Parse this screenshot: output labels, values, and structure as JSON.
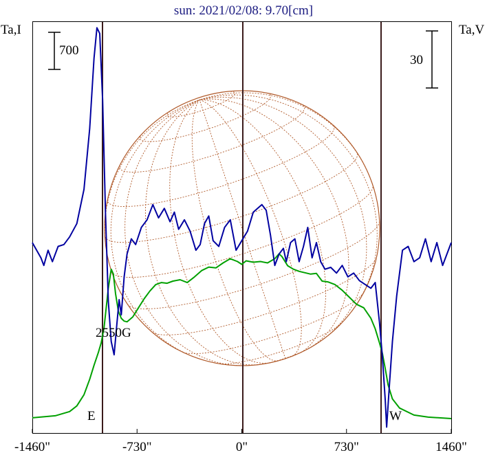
{
  "chart_data": {
    "type": "line",
    "title": "sun: 2021/02/08: 9.70[cm]",
    "ylabel_left": "Ta,I",
    "ylabel_right": "Ta,V",
    "scale_left": "700",
    "scale_right": "30",
    "x_ticks": [
      "-1460\"",
      "-730\"",
      "0\"",
      "730\"",
      "1460\""
    ],
    "x_tick_values": [
      -1460,
      -730,
      0,
      730,
      1460
    ],
    "xlim": [
      -1460,
      1460
    ],
    "limb_east_label": "E",
    "limb_west_label": "W",
    "field_label": "2550G",
    "limb_east_x": -980,
    "limb_west_x": 970,
    "grid": false,
    "series": [
      {
        "color": "#00a000",
        "x": [
          -1460,
          -1300,
          -1200,
          -1150,
          -1100,
          -1060,
          -1030,
          -1000,
          -980,
          -960,
          -930,
          -910,
          -895,
          -880,
          -860,
          -840,
          -820,
          -800,
          -760,
          -720,
          -680,
          -640,
          -600,
          -560,
          -520,
          -480,
          -430,
          -380,
          -330,
          -280,
          -230,
          -180,
          -130,
          -80,
          -30,
          0,
          30,
          80,
          130,
          180,
          230,
          260,
          280,
          320,
          360,
          400,
          440,
          480,
          520,
          560,
          600,
          650,
          700,
          750,
          800,
          850,
          900,
          930,
          960,
          980,
          1000,
          1020,
          1050,
          1100,
          1200,
          1300,
          1460
        ],
        "values": [
          0.03,
          0.06,
          0.12,
          0.2,
          0.36,
          0.58,
          0.78,
          0.96,
          1.1,
          1.32,
          1.88,
          2.15,
          2.08,
          1.8,
          1.55,
          1.45,
          1.41,
          1.4,
          1.47,
          1.6,
          1.73,
          1.84,
          1.93,
          1.96,
          1.95,
          1.98,
          2.0,
          1.96,
          2.04,
          2.13,
          2.18,
          2.17,
          2.24,
          2.3,
          2.26,
          2.22,
          2.27,
          2.25,
          2.26,
          2.24,
          2.3,
          2.37,
          2.33,
          2.2,
          2.15,
          2.12,
          2.1,
          2.08,
          2.09,
          1.98,
          1.97,
          1.93,
          1.85,
          1.75,
          1.65,
          1.6,
          1.45,
          1.3,
          1.1,
          0.95,
          0.73,
          0.5,
          0.3,
          0.17,
          0.07,
          0.04,
          0.02
        ]
      },
      {
        "color": "#0000a0",
        "x": [
          -1460,
          -1400,
          -1380,
          -1350,
          -1320,
          -1280,
          -1240,
          -1200,
          -1150,
          -1100,
          -1060,
          -1030,
          -1010,
          -990,
          -970,
          -950,
          -930,
          -910,
          -890,
          -870,
          -855,
          -840,
          -820,
          -800,
          -770,
          -740,
          -700,
          -660,
          -620,
          -580,
          -540,
          -500,
          -470,
          -440,
          -400,
          -360,
          -320,
          -290,
          -260,
          -230,
          -200,
          -160,
          -120,
          -80,
          -40,
          0,
          40,
          80,
          110,
          140,
          170,
          200,
          230,
          260,
          290,
          310,
          340,
          370,
          400,
          430,
          460,
          490,
          520,
          550,
          580,
          620,
          660,
          700,
          740,
          780,
          820,
          860,
          900,
          930,
          960,
          980,
          1000,
          1010,
          1030,
          1050,
          1080,
          1120,
          1160,
          1200,
          1240,
          1280,
          1320,
          1360,
          1400,
          1460
        ],
        "values": [
          0,
          -8,
          -12,
          -4,
          -10,
          -2,
          -1,
          3,
          10,
          28,
          60,
          97,
          113,
          110,
          75,
          15,
          -31,
          -52,
          -59,
          -42,
          -30,
          -38,
          -18,
          -6,
          2,
          -1,
          8,
          12,
          20,
          13,
          18,
          11,
          16,
          7,
          12,
          6,
          -4,
          -1,
          10,
          14,
          1,
          -2,
          8,
          12,
          -4,
          1,
          6,
          16,
          18,
          20,
          17,
          4,
          -12,
          -6,
          -3,
          -10,
          0,
          2,
          -10,
          -2,
          8,
          -8,
          0,
          -10,
          -14,
          -13,
          -16,
          -12,
          -18,
          -16,
          -20,
          -22,
          -24,
          -21,
          -42,
          -60,
          -83,
          -97,
          -74,
          -52,
          -28,
          -4,
          -2,
          -10,
          -8,
          2,
          -10,
          0,
          -12,
          0
        ]
      }
    ]
  }
}
